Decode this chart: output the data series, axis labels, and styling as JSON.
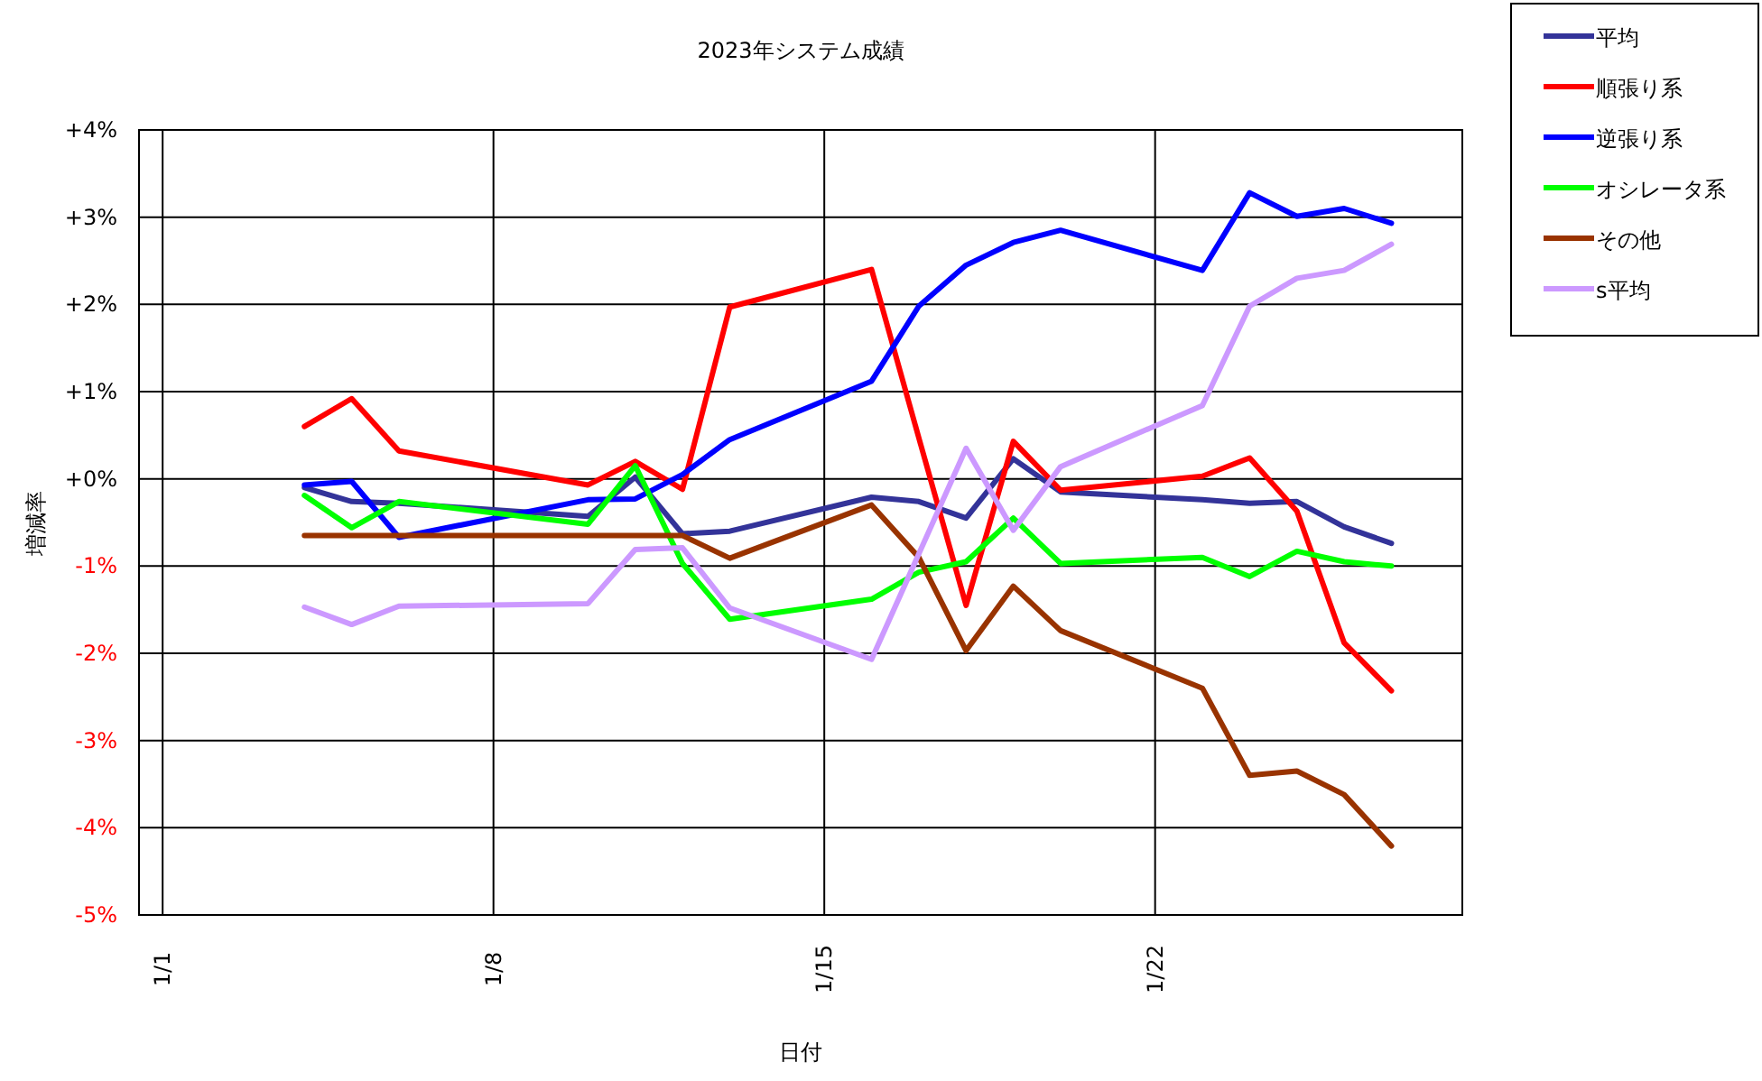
{
  "chart_data": {
    "type": "line",
    "title": "2023年システム成績",
    "xlabel": "日付",
    "ylabel": "増減率",
    "x": [
      "2023-01-04",
      "2023-01-05",
      "2023-01-06",
      "2023-01-10",
      "2023-01-11",
      "2023-01-12",
      "2023-01-13",
      "2023-01-16",
      "2023-01-17",
      "2023-01-18",
      "2023-01-19",
      "2023-01-20",
      "2023-01-23",
      "2023-01-24",
      "2023-01-25",
      "2023-01-26",
      "2023-01-27"
    ],
    "xlim": [
      "2022-12-31T12:00",
      "2023-01-28T12:00"
    ],
    "xticks": [
      {
        "value": "2023-01-01",
        "label": "1/1"
      },
      {
        "value": "2023-01-08",
        "label": "1/8"
      },
      {
        "value": "2023-01-15",
        "label": "1/15"
      },
      {
        "value": "2023-01-22",
        "label": "1/22"
      }
    ],
    "ylim": [
      -5,
      4
    ],
    "yticks": [
      {
        "value": -5,
        "label": "-5%"
      },
      {
        "value": -4,
        "label": "-4%"
      },
      {
        "value": -3,
        "label": "-3%"
      },
      {
        "value": -2,
        "label": "-2%"
      },
      {
        "value": -1,
        "label": "-1%"
      },
      {
        "value": 0,
        "label": "+0%"
      },
      {
        "value": 1,
        "label": "+1%"
      },
      {
        "value": 2,
        "label": "+2%"
      },
      {
        "value": 3,
        "label": "+3%"
      },
      {
        "value": 4,
        "label": "+4%"
      }
    ],
    "grid": true,
    "legend": "right",
    "marker": "none",
    "line_style": "solid",
    "series": [
      {
        "name": "平均",
        "color": "#333399",
        "values": [
          -0.1,
          -0.26,
          -0.28,
          -0.43,
          0.02,
          -0.63,
          -0.6,
          -0.21,
          -0.26,
          -0.45,
          0.23,
          -0.15,
          -0.24,
          -0.28,
          -0.26,
          -0.55,
          -0.74
        ]
      },
      {
        "name": "順張り系",
        "color": "#ff0000",
        "values": [
          0.6,
          0.92,
          0.32,
          -0.07,
          0.2,
          -0.12,
          1.97,
          2.4,
          0.47,
          -1.45,
          0.43,
          -0.13,
          0.03,
          0.24,
          -0.37,
          -1.88,
          -2.43
        ]
      },
      {
        "name": "逆張り系",
        "color": "#0000ff",
        "values": [
          -0.07,
          -0.03,
          -0.67,
          -0.24,
          -0.23,
          0.05,
          0.45,
          1.12,
          1.98,
          2.45,
          2.71,
          2.85,
          2.39,
          3.28,
          3.01,
          3.1,
          2.93
        ]
      },
      {
        "name": "オシレータ系",
        "color": "#00ff00",
        "values": [
          -0.19,
          -0.56,
          -0.26,
          -0.52,
          0.15,
          -0.97,
          -1.61,
          -1.38,
          -1.07,
          -0.95,
          -0.45,
          -0.97,
          -0.9,
          -1.12,
          -0.83,
          -0.95,
          -1.0
        ]
      },
      {
        "name": "その他",
        "color": "#993300",
        "values": [
          -0.65,
          -0.65,
          -0.65,
          -0.65,
          -0.65,
          -0.65,
          -0.91,
          -0.3,
          -0.9,
          -1.97,
          -1.23,
          -1.74,
          -2.4,
          -3.4,
          -3.35,
          -3.62,
          -4.21
        ]
      },
      {
        "name": "s平均",
        "color": "#cc99ff",
        "values": [
          -1.47,
          -1.67,
          -1.46,
          -1.43,
          -0.81,
          -0.79,
          -1.48,
          -2.07,
          -0.86,
          0.35,
          -0.59,
          0.14,
          0.84,
          1.98,
          2.3,
          2.39,
          2.69
        ]
      }
    ]
  }
}
